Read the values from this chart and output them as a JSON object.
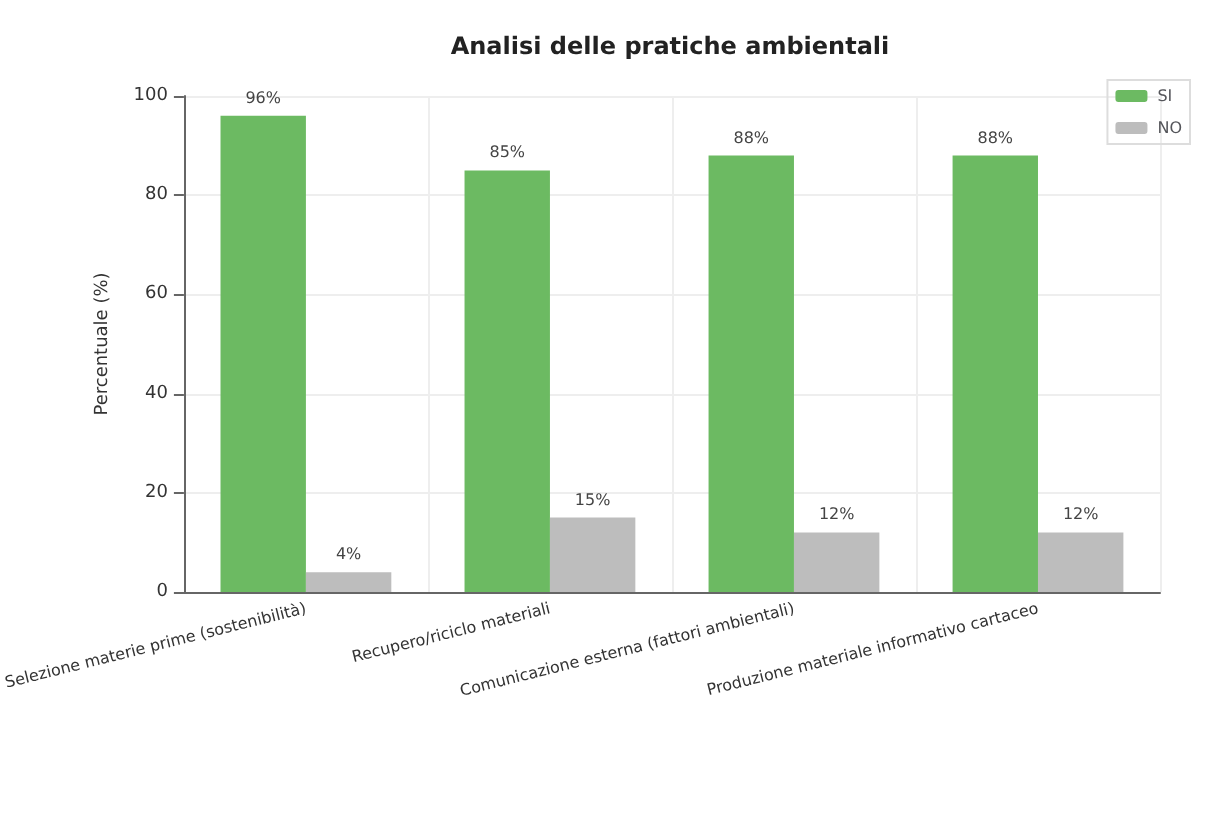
{
  "chart_data": {
    "type": "bar",
    "title": "Analisi delle pratiche ambientali",
    "ylabel": "Percentuale (%)",
    "categories": [
      "Selezione materie prime (sostenibilità)",
      "Recupero/riciclo materiali",
      "Comunicazione esterna (fattori ambientali)",
      "Produzione materiale informativo cartaceo"
    ],
    "series": [
      {
        "name": "SI",
        "color": "#6cba62",
        "values": [
          96,
          85,
          88,
          88
        ],
        "value_labels": [
          "96%",
          "85%",
          "88%",
          "88%"
        ]
      },
      {
        "name": "NO",
        "color": "#bdbdbd",
        "values": [
          4,
          15,
          12,
          12
        ],
        "value_labels": [
          "4%",
          "15%",
          "12%",
          "12%"
        ]
      }
    ],
    "ylim": [
      0,
      100
    ],
    "yticks": [
      0,
      20,
      40,
      60,
      80,
      100
    ],
    "grid": true,
    "legend": "top right"
  }
}
